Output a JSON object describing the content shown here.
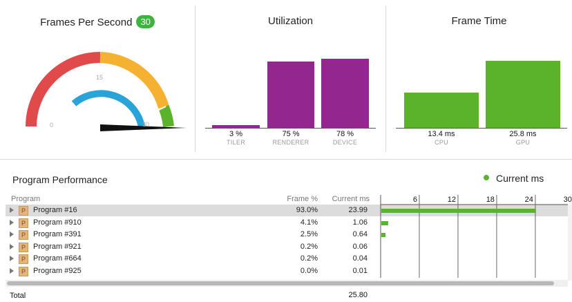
{
  "fps": {
    "title": "Frames Per Second",
    "badge": "30",
    "gauge_labels": [
      "0",
      "15",
      "30"
    ],
    "needle_value": 30,
    "colors": {
      "red": "#e04a4a",
      "orange": "#f5b232",
      "green": "#5ab32a",
      "blue": "#2aa3d8"
    }
  },
  "utilization": {
    "title": "Utilization",
    "bars": [
      {
        "value": "3 %",
        "label": "TILER",
        "percent": 3
      },
      {
        "value": "75 %",
        "label": "RENDERER",
        "percent": 75
      },
      {
        "value": "78 %",
        "label": "DEVICE",
        "percent": 78
      }
    ],
    "color": "#93278f"
  },
  "frame_time": {
    "title": "Frame Time",
    "bars": [
      {
        "value": "13.4 ms",
        "label": "CPU",
        "ms": 13.4
      },
      {
        "value": "25.8 ms",
        "label": "GPU",
        "ms": 25.8
      }
    ],
    "color": "#5ab32a"
  },
  "program_performance": {
    "title": "Program Performance",
    "legend": "Current ms",
    "columns": {
      "program": "Program",
      "frame_pct": "Frame %",
      "current_ms": "Current ms"
    },
    "ticks": [
      "6",
      "12",
      "18",
      "24",
      "30"
    ],
    "rows": [
      {
        "name": "Program #16",
        "icon": "P",
        "frame_pct": "93.0%",
        "current_ms": "23.99",
        "ms": 23.99,
        "selected": true
      },
      {
        "name": "Program #910",
        "icon": "P",
        "frame_pct": "4.1%",
        "current_ms": "1.06",
        "ms": 1.06,
        "selected": false
      },
      {
        "name": "Program #391",
        "icon": "P",
        "frame_pct": "2.5%",
        "current_ms": "0.64",
        "ms": 0.64,
        "selected": false
      },
      {
        "name": "Program #921",
        "icon": "P",
        "frame_pct": "0.2%",
        "current_ms": "0.06",
        "ms": 0.06,
        "selected": false
      },
      {
        "name": "Program #664",
        "icon": "P",
        "frame_pct": "0.2%",
        "current_ms": "0.04",
        "ms": 0.04,
        "selected": false
      },
      {
        "name": "Program #925",
        "icon": "P",
        "frame_pct": "0.0%",
        "current_ms": "0.01",
        "ms": 0.01,
        "selected": false
      }
    ],
    "total_label": "Total",
    "total_value": "25.80"
  }
}
